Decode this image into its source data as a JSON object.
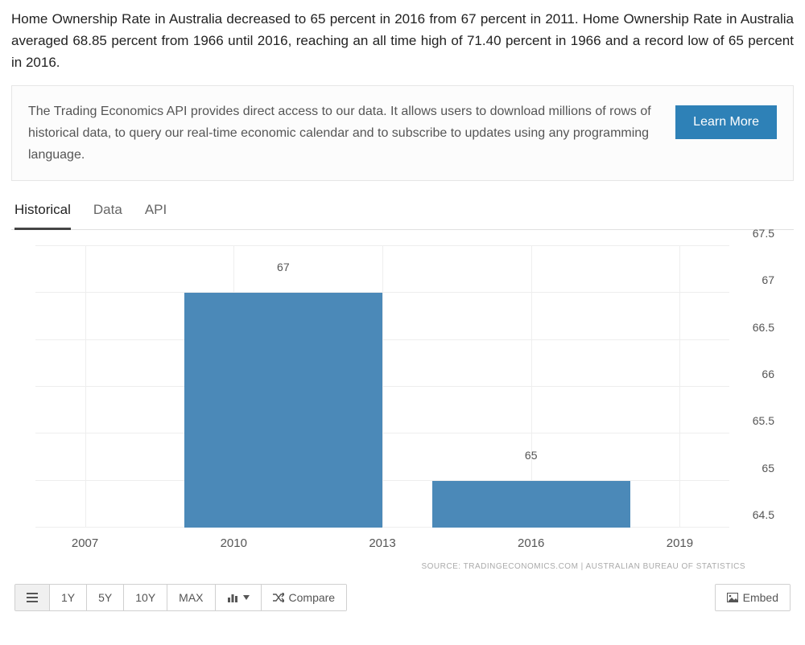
{
  "intro": "Home Ownership Rate in Australia decreased to 65 percent in 2016 from 67 percent in 2011. Home Ownership Rate in Australia averaged 68.85 percent from 1966 until 2016, reaching an all time high of 71.40 percent in 1966 and a record low of 65 percent in 2016.",
  "api_box": {
    "text": "The Trading Economics API provides direct access to our data. It allows users to download millions of rows of historical data, to query our real-time economic calendar and to subscribe to updates using any programming language.",
    "button": "Learn More"
  },
  "tabs": {
    "items": [
      "Historical",
      "Data",
      "API"
    ],
    "active_index": 0
  },
  "chart": {
    "type": "bar",
    "bar_color": "#4b89b8",
    "background_color": "#ffffff",
    "grid_color": "#eeeeee",
    "text_color": "#555555",
    "label_fontsize": 14,
    "x_ticks": [
      2007,
      2010,
      2013,
      2016,
      2019
    ],
    "x_min": 2006,
    "x_max": 2020,
    "y_ticks": [
      64.5,
      65,
      65.5,
      66,
      66.5,
      67,
      67.5
    ],
    "y_min": 64.5,
    "y_max": 67.5,
    "bars": [
      {
        "x_start": 2009,
        "x_end": 2013,
        "value": 67,
        "label": "67"
      },
      {
        "x_start": 2014,
        "x_end": 2018,
        "value": 65,
        "label": "65"
      }
    ],
    "source": "SOURCE: TRADINGECONOMICS.COM | AUSTRALIAN BUREAU OF STATISTICS"
  },
  "toolbar": {
    "ranges": [
      "1Y",
      "5Y",
      "10Y",
      "MAX"
    ],
    "compare": "Compare",
    "embed": "Embed"
  }
}
